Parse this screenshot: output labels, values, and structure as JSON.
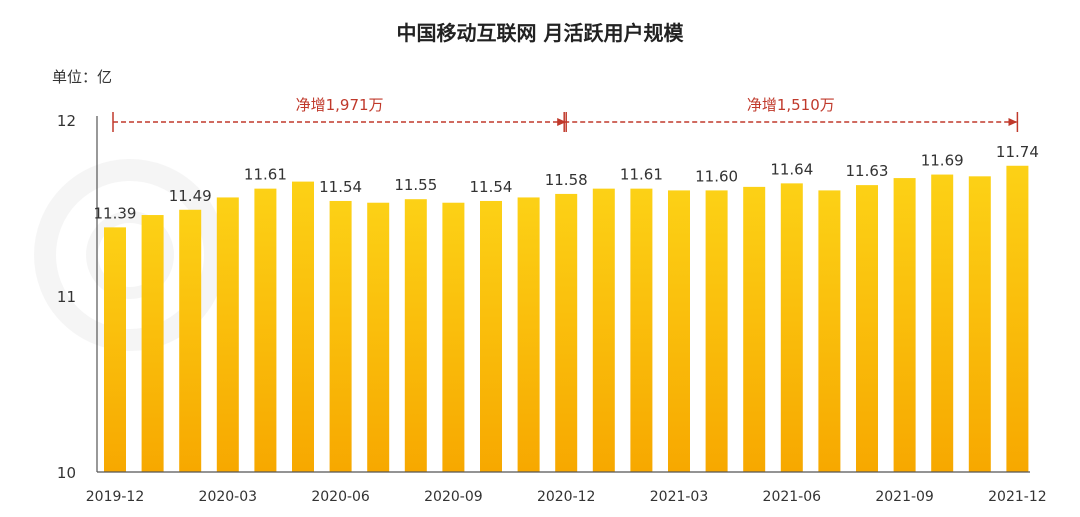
{
  "chart_data": {
    "type": "bar",
    "title": "中国移动互联网 月活跃用户规模",
    "unit_label": "单位：亿",
    "ylim": [
      10,
      12
    ],
    "y_ticks": [
      "10",
      "11",
      "12"
    ],
    "grid": false,
    "categories": [
      "2019-12",
      "2020-01",
      "2020-02",
      "2020-03",
      "2020-04",
      "2020-05",
      "2020-06",
      "2020-07",
      "2020-08",
      "2020-09",
      "2020-10",
      "2020-11",
      "2020-12",
      "2021-01",
      "2021-02",
      "2021-03",
      "2021-04",
      "2021-05",
      "2021-06",
      "2021-07",
      "2021-08",
      "2021-09",
      "2021-10",
      "2021-11",
      "2021-12"
    ],
    "x_tick_labels": [
      "2019-12",
      "2020-03",
      "2020-06",
      "2020-09",
      "2020-12",
      "2021-03",
      "2021-06",
      "2021-09",
      "2021-12"
    ],
    "values": [
      11.39,
      11.46,
      11.49,
      11.56,
      11.61,
      11.65,
      11.54,
      11.53,
      11.55,
      11.53,
      11.54,
      11.56,
      11.58,
      11.61,
      11.61,
      11.6,
      11.6,
      11.62,
      11.64,
      11.6,
      11.63,
      11.67,
      11.69,
      11.68,
      11.74
    ],
    "data_labels": [
      {
        "category": "2019-12",
        "text": "11.39"
      },
      {
        "category": "2020-02",
        "text": "11.49"
      },
      {
        "category": "2020-04",
        "text": "11.61"
      },
      {
        "category": "2020-06",
        "text": "11.54"
      },
      {
        "category": "2020-08",
        "text": "11.55"
      },
      {
        "category": "2020-10",
        "text": "11.54"
      },
      {
        "category": "2020-12",
        "text": "11.58"
      },
      {
        "category": "2021-02",
        "text": "11.61"
      },
      {
        "category": "2021-04",
        "text": "11.60"
      },
      {
        "category": "2021-06",
        "text": "11.64"
      },
      {
        "category": "2021-08",
        "text": "11.63"
      },
      {
        "category": "2021-10",
        "text": "11.69"
      },
      {
        "category": "2021-12",
        "text": "11.74"
      }
    ],
    "annotations": [
      {
        "from": "2019-12",
        "to": "2020-12",
        "text": "净增1,971万"
      },
      {
        "from": "2020-12",
        "to": "2021-12",
        "text": "净增1,510万"
      }
    ],
    "colors": {
      "bar_top": "#fcd116",
      "bar_bottom": "#f7a800",
      "annotation": "#c0392b",
      "axis": "#555555",
      "text": "#333333"
    }
  }
}
